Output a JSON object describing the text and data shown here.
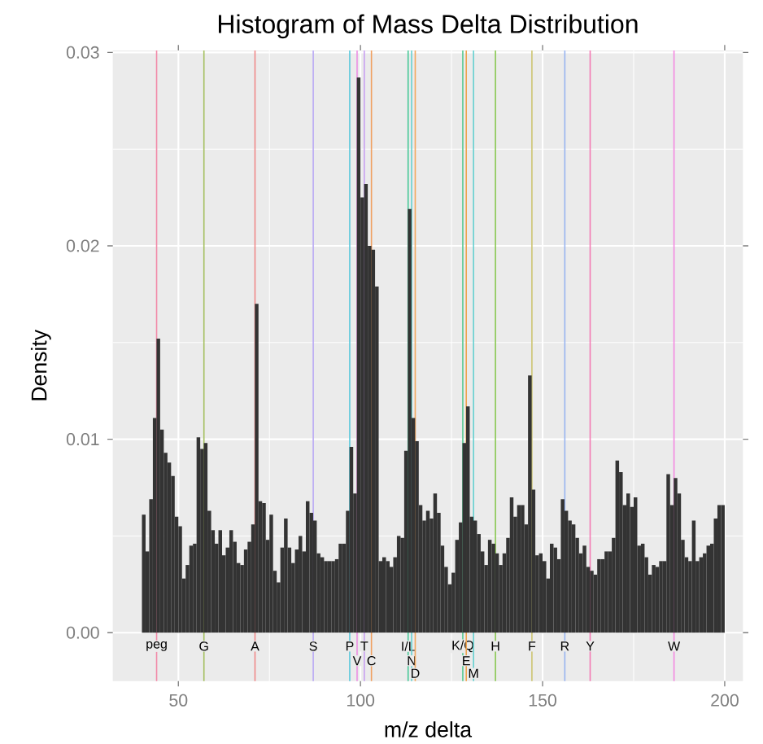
{
  "chart_data": {
    "type": "histogram",
    "title": "Histogram of Mass Delta Distribution",
    "xlabel": "m/z delta",
    "ylabel": "Density",
    "bins": [
      40,
      41,
      42,
      43,
      44,
      45,
      46,
      47,
      48,
      49,
      50,
      51,
      52,
      53,
      54,
      55,
      56,
      57,
      58,
      59,
      60,
      61,
      62,
      63,
      64,
      65,
      66,
      67,
      68,
      69,
      70,
      71,
      72,
      73,
      74,
      75,
      76,
      77,
      78,
      79,
      80,
      81,
      82,
      83,
      84,
      85,
      86,
      87,
      88,
      89,
      90,
      91,
      92,
      93,
      94,
      95,
      96,
      97,
      98,
      99,
      100,
      101,
      102,
      103,
      104,
      105,
      106,
      107,
      108,
      109,
      110,
      111,
      112,
      113,
      114,
      115,
      116,
      117,
      118,
      119,
      120,
      121,
      122,
      123,
      124,
      125,
      126,
      127,
      128,
      129,
      130,
      131,
      132,
      133,
      134,
      135,
      136,
      137,
      138,
      139,
      140,
      141,
      142,
      143,
      144,
      145,
      146,
      147,
      148,
      149,
      150,
      151,
      152,
      153,
      154,
      155,
      156,
      157,
      158,
      159,
      160,
      161,
      162,
      163,
      164,
      165,
      166,
      167,
      168,
      169,
      170,
      171,
      172,
      173,
      174,
      175,
      176,
      177,
      178,
      179,
      180,
      181,
      182,
      183,
      184,
      185,
      186,
      187,
      188,
      189,
      190,
      191,
      192,
      193,
      194,
      195,
      196,
      197,
      198,
      199,
      200
    ],
    "values": [
      0.0061,
      0.0042,
      0.0069,
      0.0111,
      0.0152,
      0.0105,
      0.0093,
      0.0088,
      0.0081,
      0.006,
      0.0055,
      0.0028,
      0.0035,
      0.0045,
      0.0046,
      0.0101,
      0.0095,
      0.0098,
      0.0063,
      0.0053,
      0.0046,
      0.0053,
      0.004,
      0.0044,
      0.0053,
      0.0047,
      0.0036,
      0.0035,
      0.0043,
      0.0047,
      0.0056,
      0.017,
      0.0068,
      0.0067,
      0.0048,
      0.0061,
      0.0032,
      0.0026,
      0.0044,
      0.0059,
      0.0044,
      0.0036,
      0.0043,
      0.005,
      0.0042,
      0.0068,
      0.0062,
      0.0058,
      0.0041,
      0.0039,
      0.0037,
      0.0037,
      0.0037,
      0.0038,
      0.0046,
      0.0046,
      0.0063,
      0.0096,
      0.0072,
      0.0287,
      0.0225,
      0.0232,
      0.02,
      0.0198,
      0.0179,
      0.0037,
      0.0039,
      0.0037,
      0.0034,
      0.0039,
      0.005,
      0.0049,
      0.0094,
      0.0219,
      0.0111,
      0.0099,
      0.0066,
      0.0058,
      0.0063,
      0.0059,
      0.0072,
      0.0062,
      0.0045,
      0.0034,
      0.0025,
      0.0031,
      0.0048,
      0.0057,
      0.0098,
      0.0117,
      0.006,
      0.0058,
      0.0051,
      0.0042,
      0.0035,
      0.0048,
      0.0046,
      0.0041,
      0.0035,
      0.0041,
      0.0049,
      0.007,
      0.006,
      0.0066,
      0.0066,
      0.0056,
      0.0133,
      0.0074,
      0.004,
      0.0041,
      0.0037,
      0.0028,
      0.0046,
      0.0044,
      0.0038,
      0.0069,
      0.0063,
      0.0058,
      0.0056,
      0.0049,
      0.0041,
      0.0045,
      0.0034,
      0.0032,
      0.003,
      0.0038,
      0.0038,
      0.0042,
      0.0042,
      0.0049,
      0.0089,
      0.0083,
      0.0066,
      0.0072,
      0.0065,
      0.007,
      0.0045,
      0.0046,
      0.0039,
      0.003,
      0.0035,
      0.0034,
      0.0037,
      0.0037,
      0.0082,
      0.0066,
      0.008,
      0.0072,
      0.0048,
      0.0039,
      0.0037,
      0.0058,
      0.0037,
      0.0039,
      0.0041,
      0.0045,
      0.0046,
      0.0059,
      0.0066,
      0.0066
    ],
    "color": "#333333",
    "xlim": [
      32,
      205
    ],
    "ylim": [
      -0.0025,
      0.0301
    ],
    "xticks": [
      50,
      100,
      150,
      200
    ],
    "yticks": [
      {
        "value": 0,
        "label": "0.00"
      },
      {
        "value": 0.01,
        "label": "0.01"
      },
      {
        "value": 0.02,
        "label": "0.02"
      },
      {
        "value": 0.03,
        "label": "0.03"
      }
    ],
    "grid": true,
    "ref_lines": [
      {
        "axis": "x",
        "value": 44.03,
        "label": "peg",
        "color": "#f28aa8"
      },
      {
        "axis": "x",
        "value": 57.02,
        "label": "G",
        "color": "#a4c060"
      },
      {
        "axis": "x",
        "value": 71.04,
        "label": "A",
        "color": "#f08a8a"
      },
      {
        "axis": "x",
        "value": 87.03,
        "label": "S",
        "color": "#b8a8f4"
      },
      {
        "axis": "x",
        "value": 97.05,
        "label": "P",
        "color": "#5cc8dc"
      },
      {
        "axis": "x",
        "value": 99.07,
        "label": "V",
        "color": "#ec90e4"
      },
      {
        "axis": "x",
        "value": 101.05,
        "label": "T",
        "color": "#c8a0f2"
      },
      {
        "axis": "x",
        "value": 103.01,
        "label": "C",
        "color": "#f0a060"
      },
      {
        "axis": "x",
        "value": 113.08,
        "label": "I/L",
        "color": "#48c898"
      },
      {
        "axis": "x",
        "value": 114.04,
        "label": "N",
        "color": "#64d0d0"
      },
      {
        "axis": "x",
        "value": 115.03,
        "label": "D",
        "color": "#f0a860"
      },
      {
        "axis": "x",
        "value": 128.09,
        "label": "K/Q",
        "color": "#58c890"
      },
      {
        "axis": "x",
        "value": 129.04,
        "label": "E",
        "color": "#eea450"
      },
      {
        "axis": "x",
        "value": 131.04,
        "label": "M",
        "color": "#64d0d0"
      },
      {
        "axis": "x",
        "value": 137.06,
        "label": "H",
        "color": "#88c850"
      },
      {
        "axis": "x",
        "value": 147.07,
        "label": "F",
        "color": "#ccc470"
      },
      {
        "axis": "x",
        "value": 156.1,
        "label": "R",
        "color": "#98b4f0"
      },
      {
        "axis": "x",
        "value": 163.06,
        "label": "Y",
        "color": "#f47ab4"
      },
      {
        "axis": "x",
        "value": 186.08,
        "label": "W",
        "color": "#f488e0"
      }
    ]
  }
}
